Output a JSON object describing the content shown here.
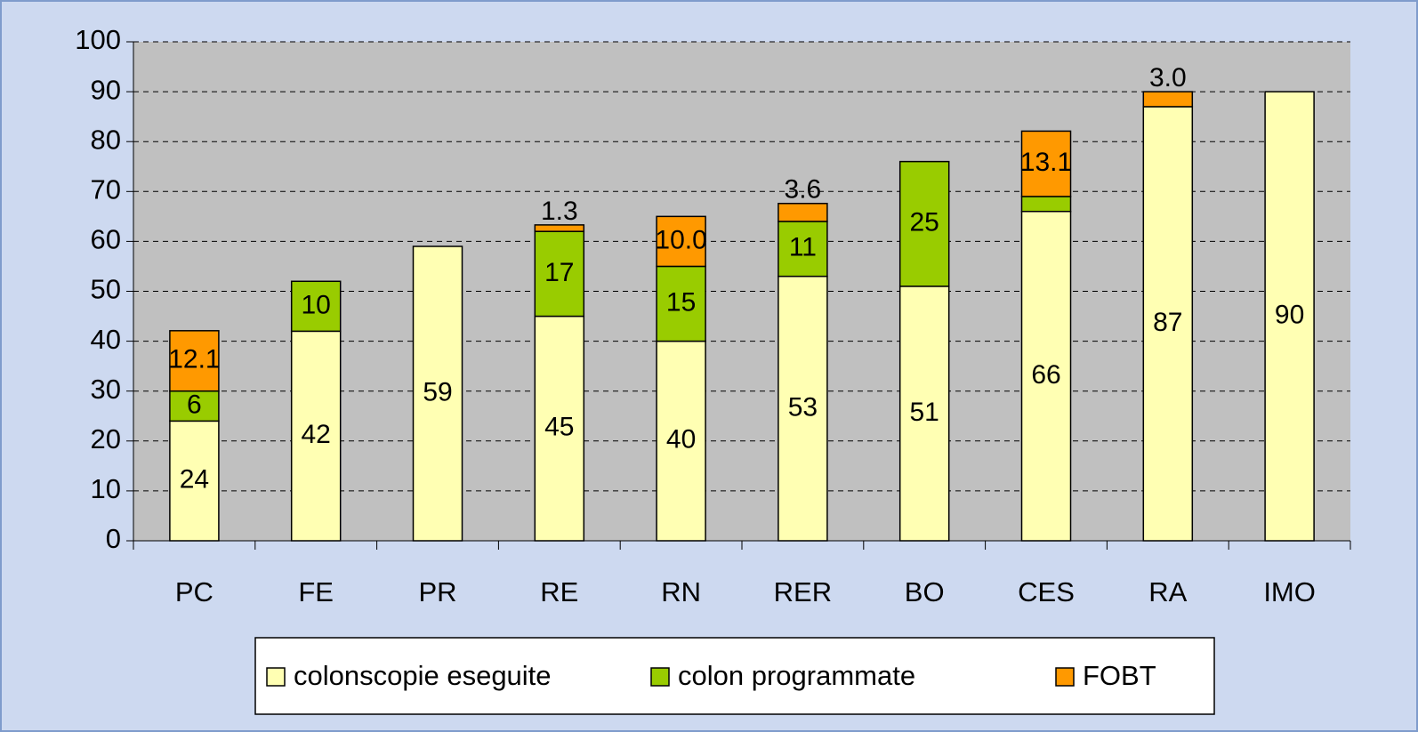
{
  "chart_data": {
    "type": "bar",
    "stacked": true,
    "categories": [
      "PC",
      "FE",
      "PR",
      "RE",
      "RN",
      "RER",
      "BO",
      "CES",
      "RA",
      "IMO"
    ],
    "series": [
      {
        "name": "colonscopie eseguite",
        "color": "#ffffb3",
        "values": [
          24,
          42,
          59,
          45,
          40,
          53,
          51,
          66,
          87,
          90
        ]
      },
      {
        "name": "colon programmate",
        "color": "#99cc00",
        "values": [
          6,
          10,
          null,
          17,
          15,
          11,
          25,
          3,
          null,
          null
        ]
      },
      {
        "name": "FOBT",
        "color": "#ff9900",
        "values": [
          12.1,
          null,
          null,
          1.3,
          10,
          3.6,
          null,
          13.1,
          3,
          null
        ],
        "value_labels": [
          "12.1",
          null,
          null,
          "1.3",
          "10.0",
          "3.6",
          null,
          "13.1",
          "3.0",
          null
        ]
      }
    ],
    "ylim": [
      0,
      100
    ],
    "yticks": [
      0,
      10,
      20,
      30,
      40,
      50,
      60,
      70,
      80,
      90,
      100
    ],
    "grid": true,
    "legend": "bottom"
  }
}
